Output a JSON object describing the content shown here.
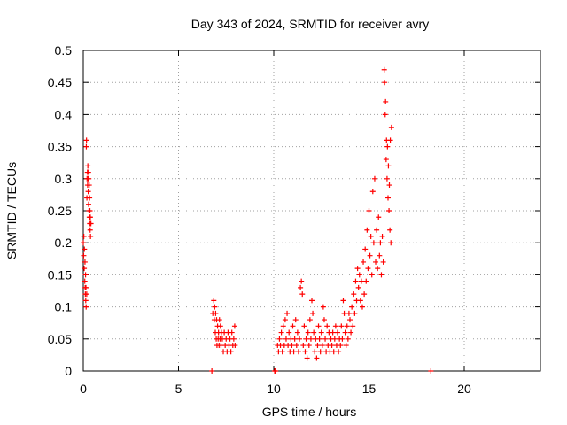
{
  "chart_data": {
    "type": "scatter",
    "title": "Day 343 of 2024, SRMTID for receiver avry",
    "xlabel": "GPS time / hours",
    "ylabel": "SRMTID / TECUs",
    "xlim": [
      0,
      24
    ],
    "ylim": [
      0,
      0.5
    ],
    "xticks": [
      0,
      5,
      10,
      15,
      20
    ],
    "xtick_labels": [
      "0",
      "5",
      "10",
      "15",
      "20"
    ],
    "yticks": [
      0,
      0.05,
      0.1,
      0.15,
      0.2,
      0.25,
      0.3,
      0.35,
      0.4,
      0.45,
      0.5
    ],
    "ytick_labels": [
      "0",
      "0.05",
      "0.1",
      "0.15",
      "0.2",
      "0.25",
      "0.3",
      "0.35",
      "0.4",
      "0.45",
      "0.5"
    ],
    "grid": true,
    "marker": "+",
    "color": "#ff0000",
    "series": [
      {
        "name": "SRMTID",
        "points": [
          [
            0.0,
            0.2
          ],
          [
            0.02,
            0.18
          ],
          [
            0.03,
            0.21
          ],
          [
            0.05,
            0.16
          ],
          [
            0.06,
            0.19
          ],
          [
            0.08,
            0.14
          ],
          [
            0.09,
            0.17
          ],
          [
            0.1,
            0.13
          ],
          [
            0.11,
            0.12
          ],
          [
            0.12,
            0.15
          ],
          [
            0.13,
            0.11
          ],
          [
            0.14,
            0.13
          ],
          [
            0.15,
            0.1
          ],
          [
            0.16,
            0.35
          ],
          [
            0.17,
            0.36
          ],
          [
            0.18,
            0.12
          ],
          [
            0.19,
            0.27
          ],
          [
            0.2,
            0.3
          ],
          [
            0.22,
            0.31
          ],
          [
            0.23,
            0.29
          ],
          [
            0.24,
            0.32
          ],
          [
            0.25,
            0.3
          ],
          [
            0.26,
            0.28
          ],
          [
            0.27,
            0.31
          ],
          [
            0.28,
            0.26
          ],
          [
            0.29,
            0.3
          ],
          [
            0.3,
            0.25
          ],
          [
            0.31,
            0.29
          ],
          [
            0.32,
            0.24
          ],
          [
            0.33,
            0.27
          ],
          [
            0.34,
            0.23
          ],
          [
            0.35,
            0.25
          ],
          [
            0.36,
            0.22
          ],
          [
            0.37,
            0.24
          ],
          [
            0.38,
            0.21
          ],
          [
            0.4,
            0.23
          ],
          [
            6.75,
            0.0
          ],
          [
            18.25,
            0.0
          ],
          [
            10.05,
            0.0
          ],
          [
            10.1,
            0.0
          ],
          [
            6.8,
            0.09
          ],
          [
            6.85,
            0.11
          ],
          [
            6.88,
            0.08
          ],
          [
            6.9,
            0.1
          ],
          [
            6.93,
            0.06
          ],
          [
            6.95,
            0.09
          ],
          [
            6.98,
            0.05
          ],
          [
            7.0,
            0.08
          ],
          [
            7.02,
            0.04
          ],
          [
            7.05,
            0.07
          ],
          [
            7.08,
            0.05
          ],
          [
            7.1,
            0.06
          ],
          [
            7.13,
            0.04
          ],
          [
            7.15,
            0.08
          ],
          [
            7.18,
            0.05
          ],
          [
            7.2,
            0.07
          ],
          [
            7.23,
            0.04
          ],
          [
            7.25,
            0.06
          ],
          [
            7.3,
            0.05
          ],
          [
            7.35,
            0.03
          ],
          [
            7.4,
            0.06
          ],
          [
            7.45,
            0.04
          ],
          [
            7.5,
            0.05
          ],
          [
            7.55,
            0.03
          ],
          [
            7.6,
            0.06
          ],
          [
            7.65,
            0.04
          ],
          [
            7.7,
            0.05
          ],
          [
            7.75,
            0.03
          ],
          [
            7.8,
            0.06
          ],
          [
            7.85,
            0.04
          ],
          [
            7.9,
            0.05
          ],
          [
            7.95,
            0.07
          ],
          [
            7.97,
            0.04
          ],
          [
            10.2,
            0.04
          ],
          [
            10.25,
            0.03
          ],
          [
            10.3,
            0.05
          ],
          [
            10.35,
            0.04
          ],
          [
            10.4,
            0.06
          ],
          [
            10.45,
            0.03
          ],
          [
            10.5,
            0.07
          ],
          [
            10.55,
            0.04
          ],
          [
            10.6,
            0.08
          ],
          [
            10.65,
            0.05
          ],
          [
            10.7,
            0.09
          ],
          [
            10.75,
            0.04
          ],
          [
            10.8,
            0.06
          ],
          [
            10.85,
            0.03
          ],
          [
            10.9,
            0.05
          ],
          [
            10.95,
            0.04
          ],
          [
            11.0,
            0.07
          ],
          [
            11.05,
            0.03
          ],
          [
            11.1,
            0.05
          ],
          [
            11.15,
            0.08
          ],
          [
            11.2,
            0.04
          ],
          [
            11.25,
            0.06
          ],
          [
            11.3,
            0.03
          ],
          [
            11.35,
            0.05
          ],
          [
            11.4,
            0.13
          ],
          [
            11.45,
            0.14
          ],
          [
            11.5,
            0.12
          ],
          [
            11.55,
            0.04
          ],
          [
            11.6,
            0.07
          ],
          [
            11.65,
            0.03
          ],
          [
            11.7,
            0.05
          ],
          [
            11.75,
            0.02
          ],
          [
            11.8,
            0.06
          ],
          [
            11.85,
            0.04
          ],
          [
            11.9,
            0.08
          ],
          [
            11.95,
            0.05
          ],
          [
            12.0,
            0.11
          ],
          [
            12.05,
            0.09
          ],
          [
            12.1,
            0.06
          ],
          [
            12.15,
            0.03
          ],
          [
            12.2,
            0.05
          ],
          [
            12.25,
            0.02
          ],
          [
            12.3,
            0.04
          ],
          [
            12.35,
            0.07
          ],
          [
            12.4,
            0.05
          ],
          [
            12.45,
            0.03
          ],
          [
            12.5,
            0.06
          ],
          [
            12.55,
            0.04
          ],
          [
            12.6,
            0.1
          ],
          [
            12.65,
            0.08
          ],
          [
            12.7,
            0.05
          ],
          [
            12.75,
            0.03
          ],
          [
            12.8,
            0.07
          ],
          [
            12.85,
            0.04
          ],
          [
            12.9,
            0.06
          ],
          [
            12.95,
            0.03
          ],
          [
            13.0,
            0.05
          ],
          [
            13.05,
            0.04
          ],
          [
            13.1,
            0.06
          ],
          [
            13.15,
            0.03
          ],
          [
            13.2,
            0.05
          ],
          [
            13.25,
            0.07
          ],
          [
            13.3,
            0.04
          ],
          [
            13.35,
            0.06
          ],
          [
            13.4,
            0.03
          ],
          [
            13.45,
            0.05
          ],
          [
            13.5,
            0.04
          ],
          [
            13.55,
            0.07
          ],
          [
            13.6,
            0.05
          ],
          [
            13.65,
            0.11
          ],
          [
            13.7,
            0.09
          ],
          [
            13.75,
            0.06
          ],
          [
            13.8,
            0.04
          ],
          [
            13.85,
            0.07
          ],
          [
            13.9,
            0.05
          ],
          [
            13.95,
            0.09
          ],
          [
            14.0,
            0.08
          ],
          [
            14.05,
            0.06
          ],
          [
            14.1,
            0.1
          ],
          [
            14.15,
            0.07
          ],
          [
            14.2,
            0.12
          ],
          [
            14.25,
            0.09
          ],
          [
            14.3,
            0.14
          ],
          [
            14.35,
            0.11
          ],
          [
            14.4,
            0.16
          ],
          [
            14.45,
            0.13
          ],
          [
            14.5,
            0.15
          ],
          [
            14.55,
            0.11
          ],
          [
            14.6,
            0.14
          ],
          [
            14.65,
            0.1
          ],
          [
            14.7,
            0.17
          ],
          [
            14.75,
            0.12
          ],
          [
            14.8,
            0.19
          ],
          [
            14.85,
            0.14
          ],
          [
            14.9,
            0.22
          ],
          [
            14.95,
            0.16
          ],
          [
            15.0,
            0.25
          ],
          [
            15.05,
            0.18
          ],
          [
            15.1,
            0.21
          ],
          [
            15.15,
            0.15
          ],
          [
            15.2,
            0.28
          ],
          [
            15.25,
            0.2
          ],
          [
            15.3,
            0.3
          ],
          [
            15.35,
            0.17
          ],
          [
            15.4,
            0.22
          ],
          [
            15.45,
            0.16
          ],
          [
            15.5,
            0.24
          ],
          [
            15.55,
            0.18
          ],
          [
            15.6,
            0.2
          ],
          [
            15.65,
            0.15
          ],
          [
            15.7,
            0.21
          ],
          [
            15.75,
            0.17
          ],
          [
            15.8,
            0.47
          ],
          [
            15.82,
            0.45
          ],
          [
            15.85,
            0.4
          ],
          [
            15.87,
            0.42
          ],
          [
            15.9,
            0.33
          ],
          [
            15.92,
            0.36
          ],
          [
            15.95,
            0.3
          ],
          [
            15.97,
            0.35
          ],
          [
            16.0,
            0.27
          ],
          [
            16.02,
            0.32
          ],
          [
            16.05,
            0.25
          ],
          [
            16.07,
            0.29
          ],
          [
            16.1,
            0.22
          ],
          [
            16.12,
            0.36
          ],
          [
            16.15,
            0.2
          ],
          [
            16.18,
            0.38
          ]
        ]
      }
    ]
  }
}
